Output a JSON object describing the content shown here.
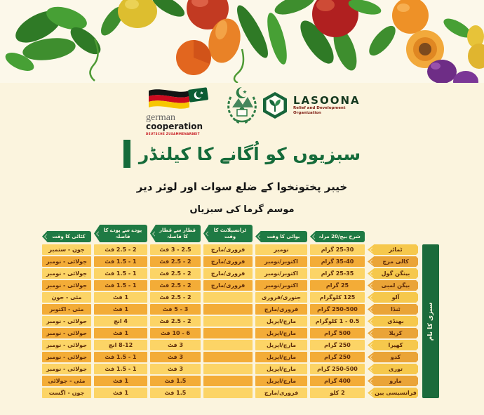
{
  "logos": {
    "german_cooperation": {
      "line1": "german",
      "line2": "cooperation",
      "line3": "DEUTSCHE ZUSAMMENARBEIT"
    },
    "lasoona": {
      "name": "LASOONA",
      "tagline_line1": "Relief and Development",
      "tagline_line2": "Organization"
    }
  },
  "title": "سبزیوں کو اُگانے کا کیلنڈر",
  "subtitle": "خیبر پختونخوا کے ضلع سوات اور لوئر دیر",
  "season_heading": "موسم گرما کی سبزیاں",
  "table": {
    "name_column_header": "سبزی کا نام",
    "headers": {
      "harvest": "کٹائی کا وقت",
      "plant_spacing": "پودے سے پودے کا فاصلہ",
      "row_spacing": "قطار سے قطار کا فاصلہ",
      "transplant": "ٹرانسپلانٹ کا وقت",
      "sowing": "بوائی کا وقت",
      "seed_rate": "شرح بیج/20 مرلہ"
    },
    "rows": [
      {
        "name": "ٹماٹر",
        "seed_rate": "25-30 گرام",
        "sowing": "نومبر",
        "transplant": "فروری/مارچ",
        "row_spacing": "2.5 - 3 فٹ",
        "plant_spacing": "2 - 2.5 فٹ",
        "harvest": "جون - ستمبر"
      },
      {
        "name": "کالی مرچ",
        "seed_rate": "35-40 گرام",
        "sowing": "اکتوبر/نومبر",
        "transplant": "فروری/مارچ",
        "row_spacing": "2 - 2.5 فٹ",
        "plant_spacing": "1 - 1.5 فٹ",
        "harvest": "جولائی - نومبر"
      },
      {
        "name": "بینگن گول",
        "seed_rate": "25-35 گرام",
        "sowing": "اکتوبر/نومبر",
        "transplant": "فروری/مارچ",
        "row_spacing": "2 - 2.5 فٹ",
        "plant_spacing": "1 - 1.5 فٹ",
        "harvest": "جولائی - نومبر"
      },
      {
        "name": "بیگن لمبی",
        "seed_rate": "25 گرام",
        "sowing": "اکتوبر/نومبر",
        "transplant": "فروری/مارچ",
        "row_spacing": "2 - 2.5 فٹ",
        "plant_spacing": "1 - 1.5 فٹ",
        "harvest": "جولائی - نومبر"
      },
      {
        "name": "آلو",
        "seed_rate": "125 کلوگرام",
        "sowing": "جنوری/فروری",
        "transplant": "",
        "row_spacing": "2 - 2.5 فٹ",
        "plant_spacing": "1 فٹ",
        "harvest": "مئی - جون"
      },
      {
        "name": "ٹنڈا",
        "seed_rate": "250-500 گرام",
        "sowing": "فروری/مارچ",
        "transplant": "",
        "row_spacing": "3 - 5 فٹ",
        "plant_spacing": "1 فٹ",
        "harvest": "مئی - اکتوبر"
      },
      {
        "name": "بھنڈی",
        "seed_rate": "0.5 - 1 کلوگرام",
        "sowing": "مارچ/اپریل",
        "transplant": "",
        "row_spacing": "2 - 2.5 فٹ",
        "plant_spacing": "4 انچ",
        "harvest": "جولائی - نومبر"
      },
      {
        "name": "کریلا",
        "seed_rate": "500 گرام",
        "sowing": "مارچ/اپریل",
        "transplant": "",
        "row_spacing": "6 - 10 فٹ",
        "plant_spacing": "1 فٹ",
        "harvest": "جولائی - نومبر"
      },
      {
        "name": "کھیرا",
        "seed_rate": "250 گرام",
        "sowing": "مارچ/اپریل",
        "transplant": "",
        "row_spacing": "3 فٹ",
        "plant_spacing": "8-12 انچ",
        "harvest": "جولائی - نومبر"
      },
      {
        "name": "کدو",
        "seed_rate": "250 گرام",
        "sowing": "مارچ/اپریل",
        "transplant": "",
        "row_spacing": "3 فٹ",
        "plant_spacing": "1 - 1.5 فٹ",
        "harvest": "جولائی - نومبر"
      },
      {
        "name": "توری",
        "seed_rate": "250-500 گرام",
        "sowing": "مارچ/اپریل",
        "transplant": "",
        "row_spacing": "3 فٹ",
        "plant_spacing": "1 - 1.5 فٹ",
        "harvest": "جولائی - نومبر"
      },
      {
        "name": "مارو",
        "seed_rate": "400 گرام",
        "sowing": "مارچ/اپریل",
        "transplant": "",
        "row_spacing": "1.5 فٹ",
        "plant_spacing": "1 فٹ",
        "harvest": "مئی - جولائی"
      },
      {
        "name": "فرانسیسی بین",
        "seed_rate": "2 کلو",
        "sowing": "فروری/مارچ",
        "transplant": "",
        "row_spacing": "1.5 فٹ",
        "plant_spacing": "1 فٹ",
        "harvest": "جون - اگست"
      }
    ]
  },
  "colors": {
    "background": "#FBF4DE",
    "row_light": "#FCD466",
    "row_dark": "#F3AC37",
    "header_green": "#1F7A44",
    "bar_green": "#1B6B3B",
    "title_green": "#156B3A",
    "cell_text": "#5E2B09"
  }
}
